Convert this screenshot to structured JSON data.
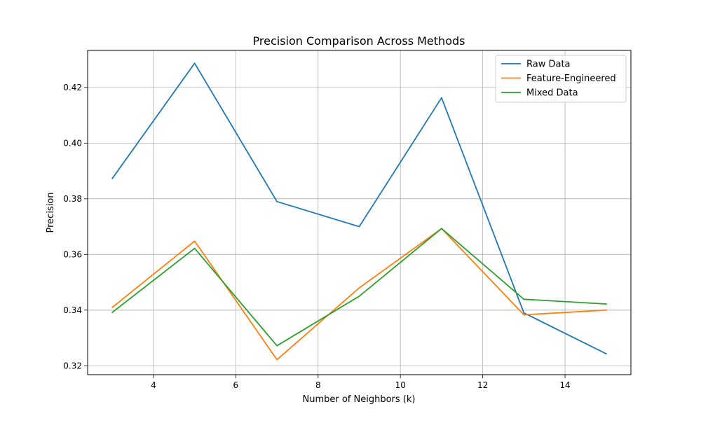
{
  "chart_data": {
    "type": "line",
    "title": "Precision Comparison Across Methods",
    "xlabel": "Number of Neighbors (k)",
    "ylabel": "Precision",
    "xlim": [
      2.4,
      15.6
    ],
    "ylim": [
      0.3168,
      0.4333
    ],
    "xticks": [
      4,
      6,
      8,
      10,
      12,
      14
    ],
    "xtick_labels": [
      "4",
      "6",
      "8",
      "10",
      "12",
      "14"
    ],
    "yticks": [
      0.32,
      0.34,
      0.36,
      0.38,
      0.4,
      0.42
    ],
    "ytick_labels": [
      "0.32",
      "0.34",
      "0.36",
      "0.38",
      "0.40",
      "0.42"
    ],
    "grid": true,
    "legend_position": "top-right",
    "x": [
      3,
      5,
      7,
      9,
      11,
      13,
      15
    ],
    "series": [
      {
        "name": "Raw Data",
        "color": "#1f77b4",
        "values": [
          0.3873,
          0.4287,
          0.379,
          0.37,
          0.4163,
          0.339,
          0.3243
        ]
      },
      {
        "name": "Feature-Engineered",
        "color": "#ff7f0e",
        "values": [
          0.341,
          0.3648,
          0.3222,
          0.348,
          0.3693,
          0.3383,
          0.34
        ]
      },
      {
        "name": "Mixed Data",
        "color": "#2ca02c",
        "values": [
          0.3392,
          0.3622,
          0.3272,
          0.345,
          0.3693,
          0.3439,
          0.3422
        ]
      }
    ]
  }
}
